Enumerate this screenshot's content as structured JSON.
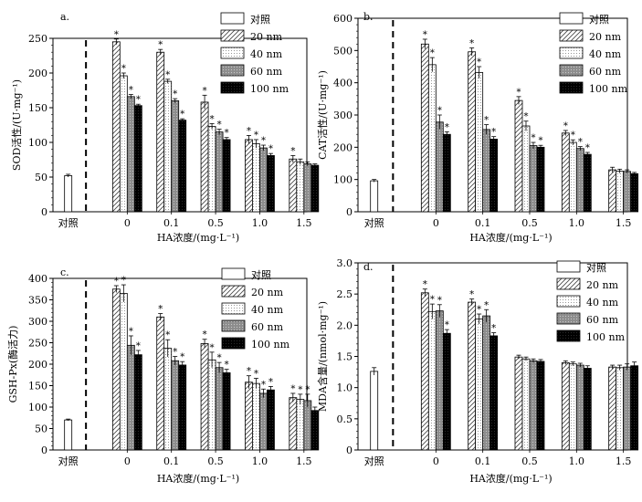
{
  "legend_entries": [
    "对照",
    "20 nm",
    "40 nm",
    "60 nm",
    "100 nm"
  ],
  "chart_data": [
    {
      "type": "bar",
      "panel_label": "a.",
      "ylabel": "SOD活性/(U·mg⁻¹)",
      "xlabel": "HA浓度/(mg·L⁻¹)",
      "ylim": [
        0,
        250
      ],
      "yticks": [
        "0",
        "50",
        "100",
        "150",
        "200",
        "250"
      ],
      "legend_position": "top-right",
      "control": {
        "label": "对照",
        "value": 52,
        "err": 2
      },
      "categories": [
        "0",
        "0.1",
        "0.5",
        "1.0",
        "1.5"
      ],
      "series": [
        {
          "name": "20 nm",
          "values": [
            245,
            230,
            158,
            104,
            76
          ],
          "err": [
            4,
            4,
            10,
            6,
            5
          ],
          "sig": [
            "*",
            "*",
            "*",
            "*",
            "*"
          ]
        },
        {
          "name": "40 nm",
          "values": [
            196,
            188,
            123,
            98,
            72
          ],
          "err": [
            4,
            3,
            4,
            6,
            4
          ],
          "sig": [
            "*",
            "*",
            "*",
            "*",
            ""
          ]
        },
        {
          "name": "60 nm",
          "values": [
            166,
            160,
            115,
            92,
            69
          ],
          "err": [
            3,
            3,
            4,
            4,
            3
          ],
          "sig": [
            "*",
            "*",
            "*",
            "*",
            ""
          ]
        },
        {
          "name": "100 nm",
          "values": [
            153,
            132,
            104,
            81,
            67
          ],
          "err": [
            2,
            2,
            3,
            3,
            2
          ],
          "sig": [
            "*",
            "*",
            "*",
            "*",
            ""
          ]
        }
      ]
    },
    {
      "type": "bar",
      "panel_label": "b.",
      "ylabel": "CAT活性/(U·mg⁻¹)",
      "xlabel": "HA浓度/(mg·L⁻¹)",
      "ylim": [
        0,
        600
      ],
      "yticks": [
        "0",
        "100",
        "200",
        "300",
        "400",
        "500",
        "600"
      ],
      "legend_position": "top-right",
      "control": {
        "label": "对照",
        "value": 96,
        "err": 4
      },
      "categories": [
        "0",
        "0.1",
        "0.5",
        "1.0",
        "1.5"
      ],
      "series": [
        {
          "name": "20 nm",
          "values": [
            520,
            496,
            345,
            244,
            130
          ],
          "err": [
            15,
            12,
            12,
            8,
            8
          ],
          "sig": [
            "*",
            "*",
            "*",
            "*",
            ""
          ]
        },
        {
          "name": "40 nm",
          "values": [
            456,
            432,
            266,
            215,
            126
          ],
          "err": [
            22,
            18,
            15,
            8,
            6
          ],
          "sig": [
            "*",
            "*",
            "*",
            "*",
            ""
          ]
        },
        {
          "name": "60 nm",
          "values": [
            278,
            255,
            205,
            196,
            125
          ],
          "err": [
            22,
            15,
            10,
            6,
            5
          ],
          "sig": [
            "*",
            "*",
            "*",
            "*",
            ""
          ]
        },
        {
          "name": "100 nm",
          "values": [
            240,
            225,
            200,
            178,
            118
          ],
          "err": [
            8,
            8,
            6,
            6,
            4
          ],
          "sig": [
            "*",
            "*",
            "*",
            "*",
            ""
          ]
        }
      ]
    },
    {
      "type": "bar",
      "panel_label": "c.",
      "ylabel": "GSH-Px(酶活力)",
      "xlabel": "HA浓度/(mg·L⁻¹)",
      "ylim": [
        0,
        400
      ],
      "yticks": [
        "0",
        "50",
        "100",
        "150",
        "200",
        "250",
        "300",
        "350",
        "400"
      ],
      "legend_position": "top-right",
      "control": {
        "label": "对照",
        "value": 70,
        "err": 2
      },
      "categories": [
        "0",
        "0.1",
        "0.5",
        "1.0",
        "1.5"
      ],
      "series": [
        {
          "name": "20 nm",
          "values": [
            375,
            310,
            248,
            158,
            122
          ],
          "err": [
            8,
            8,
            10,
            15,
            10
          ],
          "sig": [
            "*",
            "*",
            "*",
            "*",
            "*"
          ]
        },
        {
          "name": "40 nm",
          "values": [
            365,
            237,
            210,
            155,
            118
          ],
          "err": [
            20,
            20,
            18,
            12,
            12
          ],
          "sig": [
            "*",
            "*",
            "*",
            "*",
            "*"
          ]
        },
        {
          "name": "60 nm",
          "values": [
            244,
            208,
            192,
            132,
            115
          ],
          "err": [
            22,
            10,
            12,
            10,
            15
          ],
          "sig": [
            "*",
            "*",
            "*",
            "*",
            "*"
          ]
        },
        {
          "name": "100 nm",
          "values": [
            222,
            198,
            180,
            140,
            92
          ],
          "err": [
            10,
            8,
            8,
            8,
            8
          ],
          "sig": [
            "*",
            "*",
            "*",
            "*",
            ""
          ]
        }
      ]
    },
    {
      "type": "bar",
      "panel_label": "d.",
      "ylabel": "MDA含量/(nmol·mg⁻¹)",
      "xlabel": "HA浓度/(mg·L⁻¹)",
      "ylim": [
        0,
        3.0
      ],
      "yticks": [
        "0",
        "0.5",
        "1.0",
        "1.5",
        "2.0",
        "2.5",
        "3.0"
      ],
      "legend_position": "top-right",
      "control": {
        "label": "对照",
        "value": 1.26,
        "err": 0.06
      },
      "categories": [
        "0",
        "0.1",
        "0.5",
        "1.0",
        "1.5"
      ],
      "series": [
        {
          "name": "20 nm",
          "values": [
            2.52,
            2.37,
            1.49,
            1.4,
            1.33
          ],
          "err": [
            0.06,
            0.05,
            0.03,
            0.03,
            0.03
          ],
          "sig": [
            "*",
            "*",
            "",
            "",
            ""
          ]
        },
        {
          "name": "40 nm",
          "values": [
            2.22,
            2.1,
            1.46,
            1.38,
            1.32
          ],
          "err": [
            0.12,
            0.08,
            0.03,
            0.03,
            0.04
          ],
          "sig": [
            "*",
            "*",
            "",
            "",
            ""
          ]
        },
        {
          "name": "60 nm",
          "values": [
            2.23,
            2.15,
            1.43,
            1.36,
            1.33
          ],
          "err": [
            0.1,
            0.1,
            0.03,
            0.03,
            0.05
          ],
          "sig": [
            "*",
            "*",
            "",
            "",
            ""
          ]
        },
        {
          "name": "100 nm",
          "values": [
            1.87,
            1.83,
            1.42,
            1.31,
            1.35
          ],
          "err": [
            0.06,
            0.05,
            0.03,
            0.04,
            0.06
          ],
          "sig": [
            "*",
            "*",
            "",
            "",
            ""
          ]
        }
      ]
    }
  ]
}
